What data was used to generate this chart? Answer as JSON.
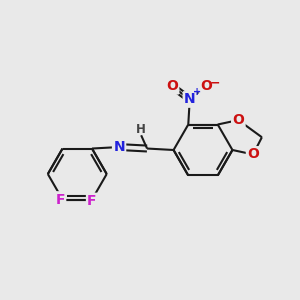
{
  "background_color": "#e9e9e9",
  "bond_color": "#1a1a1a",
  "bond_width": 1.5,
  "atom_colors": {
    "N_imine": "#2222dd",
    "N_nitro": "#2222dd",
    "O": "#cc1111",
    "F": "#cc22cc",
    "H": "#444444",
    "C": "#1a1a1a"
  },
  "font_size_atom": 10,
  "font_size_h": 8.5,
  "font_size_charge": 8
}
